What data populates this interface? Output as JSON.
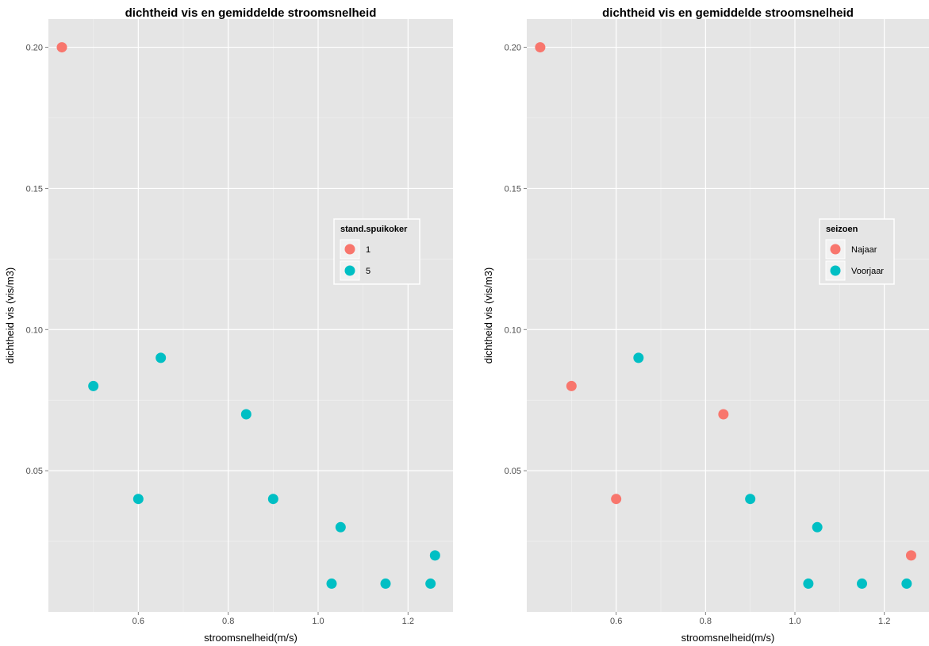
{
  "chart_data": [
    {
      "type": "scatter",
      "title": "dichtheid vis en gemiddelde stroomsnelheid",
      "xlabel": "stroomsnelheid(m/s)",
      "ylabel": "dichtheid vis (vis/m3)",
      "xlim": [
        0.4,
        1.3
      ],
      "ylim": [
        0.0,
        0.21
      ],
      "xticks": [
        0.6,
        0.8,
        1.0,
        1.2
      ],
      "xtick_labels": [
        "0.6",
        "0.8",
        "1.0",
        "1.2"
      ],
      "yticks": [
        0.05,
        0.1,
        0.15,
        0.2
      ],
      "ytick_labels": [
        "0.05",
        "0.10",
        "0.15",
        "0.20"
      ],
      "grid": true,
      "legend": {
        "title": "stand.spuikoker",
        "placement": "right-center"
      },
      "series": [
        {
          "name": "1",
          "color": "#F8766D",
          "x": [
            0.43
          ],
          "y": [
            0.2
          ]
        },
        {
          "name": "5",
          "color": "#00BFC4",
          "x": [
            0.5,
            0.6,
            0.65,
            0.84,
            0.9,
            1.03,
            1.05,
            1.15,
            1.25,
            1.26
          ],
          "y": [
            0.08,
            0.04,
            0.09,
            0.07,
            0.04,
            0.01,
            0.03,
            0.01,
            0.01,
            0.02
          ]
        }
      ]
    },
    {
      "type": "scatter",
      "title": "dichtheid vis en gemiddelde stroomsnelheid",
      "xlabel": "stroomsnelheid(m/s)",
      "ylabel": "dichtheid vis (vis/m3)",
      "xlim": [
        0.4,
        1.3
      ],
      "ylim": [
        0.0,
        0.21
      ],
      "xticks": [
        0.6,
        0.8,
        1.0,
        1.2
      ],
      "xtick_labels": [
        "0.6",
        "0.8",
        "1.0",
        "1.2"
      ],
      "yticks": [
        0.05,
        0.1,
        0.15,
        0.2
      ],
      "ytick_labels": [
        "0.05",
        "0.10",
        "0.15",
        "0.20"
      ],
      "grid": true,
      "legend": {
        "title": "seizoen",
        "placement": "right-center"
      },
      "series": [
        {
          "name": "Najaar",
          "color": "#F8766D",
          "x": [
            0.43,
            0.5,
            0.6,
            0.84,
            1.26
          ],
          "y": [
            0.2,
            0.08,
            0.04,
            0.07,
            0.02
          ]
        },
        {
          "name": "Voorjaar",
          "color": "#00BFC4",
          "x": [
            0.65,
            0.9,
            1.03,
            1.05,
            1.15,
            1.25
          ],
          "y": [
            0.09,
            0.04,
            0.01,
            0.03,
            0.01,
            0.01
          ]
        }
      ]
    }
  ]
}
